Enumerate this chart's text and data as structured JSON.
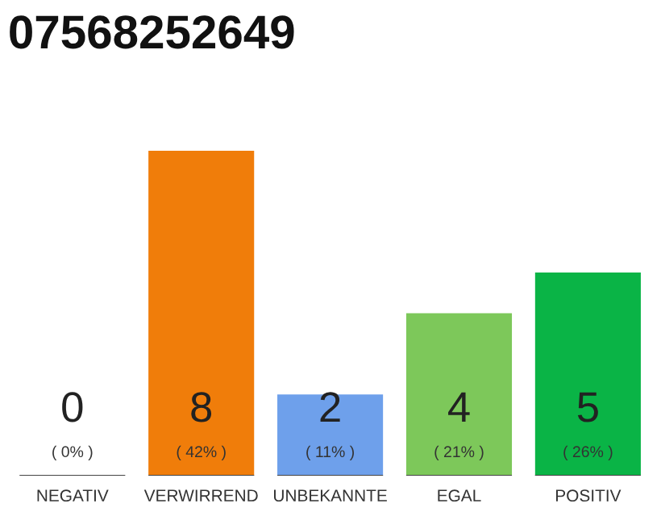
{
  "chart_data": {
    "type": "bar",
    "title": "07568252649",
    "categories": [
      "NEGATIV",
      "VERWIRREND",
      "UNBEKANNTE",
      "EGAL",
      "POSITIV"
    ],
    "values": [
      0,
      8,
      2,
      4,
      5
    ],
    "colors": [
      "#e04040",
      "#f07d0a",
      "#6ea0eb",
      "#7dc85a",
      "#0ab446"
    ],
    "data_labels": true,
    "annotations": [
      "( 0% )",
      "( 42% )",
      "( 11% )",
      "( 21% )",
      "( 26% )"
    ],
    "grid": false,
    "legend": false
  }
}
